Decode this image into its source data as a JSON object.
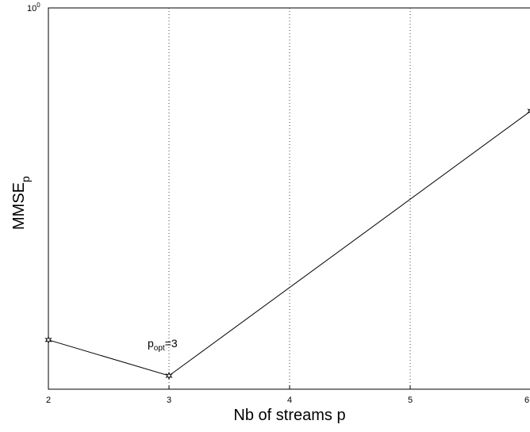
{
  "chart_data": {
    "type": "line",
    "title": "",
    "xlabel": "Nb of streams p",
    "ylabel_main": "MMSE",
    "ylabel_sub": "p",
    "y_scale": "log",
    "xlim": [
      2,
      6
    ],
    "ylim_top_label_base": "10",
    "ylim_top_label_exp": "0",
    "x_ticks": [
      "2",
      "3",
      "4",
      "5",
      "6"
    ],
    "grid": "vertical dotted",
    "series": [
      {
        "x": [
          2,
          3,
          6
        ],
        "y": [
          0.47,
          0.43,
          0.83
        ],
        "marker": "star",
        "color": "#000000"
      }
    ],
    "annotation": {
      "base": "p",
      "sub": "opt",
      "rest": "=3",
      "x": 3,
      "y": 0.43
    }
  }
}
